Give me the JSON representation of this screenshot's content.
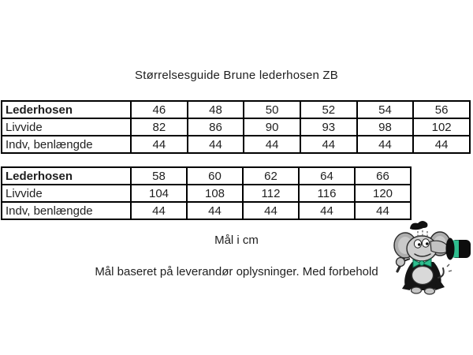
{
  "page": {
    "title": "Størrelsesguide Brune lederhosen ZB",
    "unit_note": "Mål i cm",
    "disclaimer": "Mål baseret på leverandør oplysninger. Med forbehold"
  },
  "size_tables": [
    {
      "rows": [
        {
          "label": "Lederhosen",
          "header": true,
          "values": [
            "46",
            "48",
            "50",
            "52",
            "54",
            "56"
          ]
        },
        {
          "label": "Livvide",
          "header": false,
          "values": [
            "82",
            "86",
            "90",
            "93",
            "98",
            "102"
          ]
        },
        {
          "label": "Indv, benlængde",
          "header": false,
          "values": [
            "44",
            "44",
            "44",
            "44",
            "44",
            "44"
          ]
        }
      ]
    },
    {
      "rows": [
        {
          "label": "Lederhosen",
          "header": true,
          "values": [
            "58",
            "60",
            "62",
            "64",
            "66"
          ]
        },
        {
          "label": "Livvide",
          "header": false,
          "values": [
            "104",
            "108",
            "112",
            "116",
            "120"
          ]
        },
        {
          "label": "Indv, benlængde",
          "header": false,
          "values": [
            "44",
            "44",
            "44",
            "44",
            "44"
          ]
        }
      ]
    }
  ],
  "mascot": {
    "icon": "elephant-with-top-hat-and-cane-icon"
  },
  "colors": {
    "text": "#1f1f1f",
    "table_border": "#000000",
    "background": "#ffffff",
    "mascot_green": "#2fbe8f",
    "mascot_gray": "#c6c6c6",
    "mascot_black": "#111111"
  }
}
